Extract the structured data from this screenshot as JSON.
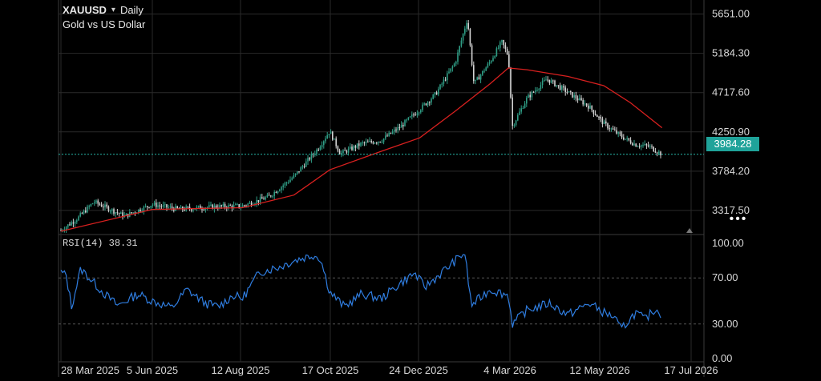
{
  "header": {
    "symbol": "XAUUSD",
    "caret": "▾",
    "timeframe": "Daily",
    "subtitle": "Gold vs US Dollar"
  },
  "price_axis_labels": [
    "5651.00",
    "5184.30",
    "4717.60",
    "4250.90",
    "3784.20",
    "3317.50"
  ],
  "current_price": "3984.28",
  "more_button": "•••",
  "rsi": {
    "label": "RSI(14)",
    "value": "38.31",
    "axis_labels": [
      "100.00",
      "70.00",
      "30.00",
      "0.00"
    ]
  },
  "time_axis_labels": [
    "28 Mar 2025",
    "5 Jun 2025",
    "12 Aug 2025",
    "17 Oct 2025",
    "24 Dec 2025",
    "4 Mar 2026",
    "12 May 2026",
    "17 Jul 2026"
  ],
  "colors": {
    "background": "#000000",
    "grid": "#2a2a2a",
    "price_line": "#26b5a6",
    "ma_line": "#d8201f",
    "rsi_line": "#2f7de0",
    "candle_up": "#2f9e86",
    "candle_down": "#d3d3d3"
  },
  "chart_data": [
    {
      "type": "candlestick",
      "title": "XAUUSD Daily",
      "ylim": [
        3050,
        5780
      ],
      "x_range": [
        "2025-03-28",
        "2026-07-17"
      ],
      "overlay_series": [
        {
          "type": "line",
          "note_color": "#d8201f"
        }
      ],
      "approx_close_path": [
        [
          "2025-03-28",
          3080
        ],
        [
          "2025-04-10",
          3230
        ],
        [
          "2025-04-22",
          3420
        ],
        [
          "2025-05-15",
          3250
        ],
        [
          "2025-06-05",
          3390
        ],
        [
          "2025-06-25",
          3330
        ],
        [
          "2025-07-20",
          3360
        ],
        [
          "2025-08-12",
          3370
        ],
        [
          "2025-09-01",
          3480
        ],
        [
          "2025-09-20",
          3720
        ],
        [
          "2025-10-08",
          4050
        ],
        [
          "2025-10-17",
          4260
        ],
        [
          "2025-10-25",
          3990
        ],
        [
          "2025-11-10",
          4110
        ],
        [
          "2025-11-25",
          4150
        ],
        [
          "2025-12-10",
          4320
        ],
        [
          "2025-12-24",
          4520
        ],
        [
          "2026-01-05",
          4700
        ],
        [
          "2026-01-20",
          5080
        ],
        [
          "2026-01-29",
          5600
        ],
        [
          "2026-02-03",
          4820
        ],
        [
          "2026-02-15",
          5080
        ],
        [
          "2026-02-24",
          5320
        ],
        [
          "2026-03-01",
          5150
        ],
        [
          "2026-03-04",
          4320
        ],
        [
          "2026-03-15",
          4650
        ],
        [
          "2026-03-30",
          4880
        ],
        [
          "2026-04-15",
          4720
        ],
        [
          "2026-05-01",
          4550
        ],
        [
          "2026-05-12",
          4350
        ],
        [
          "2026-05-25",
          4200
        ],
        [
          "2026-06-05",
          4100
        ],
        [
          "2026-06-15",
          4080
        ],
        [
          "2026-06-25",
          3984
        ]
      ],
      "moving_average": [
        [
          "2025-03-28",
          3070
        ],
        [
          "2025-05-15",
          3250
        ],
        [
          "2025-06-05",
          3330
        ],
        [
          "2025-08-12",
          3350
        ],
        [
          "2025-09-20",
          3500
        ],
        [
          "2025-10-17",
          3800
        ],
        [
          "2025-11-25",
          4020
        ],
        [
          "2025-12-24",
          4180
        ],
        [
          "2026-01-20",
          4500
        ],
        [
          "2026-02-15",
          4820
        ],
        [
          "2026-03-01",
          5010
        ],
        [
          "2026-03-15",
          4990
        ],
        [
          "2026-04-15",
          4910
        ],
        [
          "2026-05-12",
          4800
        ],
        [
          "2026-06-01",
          4600
        ],
        [
          "2026-06-25",
          4300
        ]
      ]
    },
    {
      "type": "line",
      "title": "RSI(14) 38.31",
      "ylim": [
        0,
        100
      ],
      "reference_lines": [
        30,
        70
      ],
      "values": [
        [
          "2025-03-28",
          75
        ],
        [
          "2025-04-01",
          72
        ],
        [
          "2025-04-05",
          45
        ],
        [
          "2025-04-12",
          78
        ],
        [
          "2025-04-20",
          68
        ],
        [
          "2025-05-01",
          55
        ],
        [
          "2025-05-10",
          46
        ],
        [
          "2025-05-25",
          56
        ],
        [
          "2025-06-05",
          50
        ],
        [
          "2025-06-20",
          44
        ],
        [
          "2025-07-01",
          60
        ],
        [
          "2025-07-15",
          48
        ],
        [
          "2025-07-25",
          45
        ],
        [
          "2025-08-05",
          55
        ],
        [
          "2025-08-12",
          52
        ],
        [
          "2025-08-25",
          75
        ],
        [
          "2025-09-10",
          80
        ],
        [
          "2025-09-20",
          85
        ],
        [
          "2025-10-05",
          90
        ],
        [
          "2025-10-10",
          87
        ],
        [
          "2025-10-17",
          58
        ],
        [
          "2025-10-28",
          45
        ],
        [
          "2025-11-10",
          56
        ],
        [
          "2025-11-25",
          52
        ],
        [
          "2025-12-10",
          66
        ],
        [
          "2025-12-20",
          74
        ],
        [
          "2025-12-28",
          62
        ],
        [
          "2026-01-10",
          75
        ],
        [
          "2026-01-27",
          92
        ],
        [
          "2026-02-01",
          46
        ],
        [
          "2026-02-15",
          60
        ],
        [
          "2026-03-01",
          55
        ],
        [
          "2026-03-04",
          30
        ],
        [
          "2026-03-15",
          42
        ],
        [
          "2026-04-01",
          48
        ],
        [
          "2026-04-15",
          38
        ],
        [
          "2026-05-01",
          48
        ],
        [
          "2026-05-12",
          40
        ],
        [
          "2026-05-20",
          36
        ],
        [
          "2026-05-25",
          25
        ],
        [
          "2026-06-05",
          40
        ],
        [
          "2026-06-12",
          34
        ],
        [
          "2026-06-20",
          43
        ],
        [
          "2026-06-25",
          38.31
        ]
      ]
    }
  ]
}
